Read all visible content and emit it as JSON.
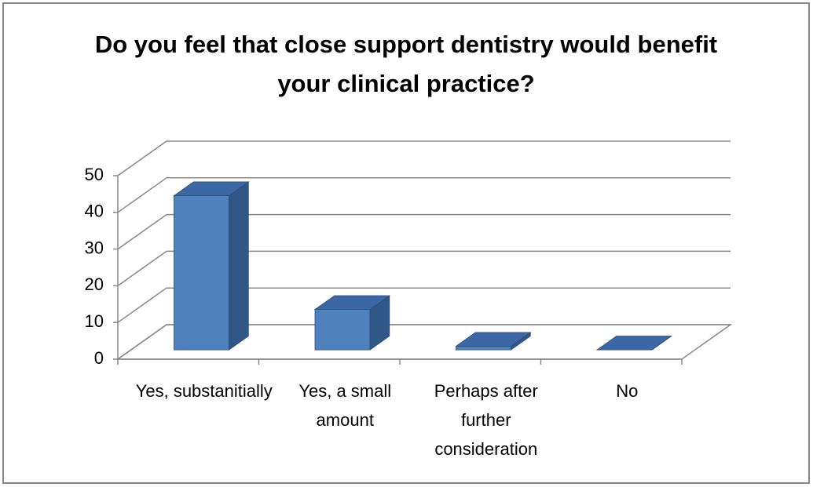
{
  "chart_data": {
    "type": "bar3d",
    "title": "Do you feel that close support dentistry would benefit your clinical practice?",
    "categories": [
      "Yes, substanitially",
      "Yes, a small amount",
      "Perhaps after further consideration",
      "No"
    ],
    "values": [
      42,
      11,
      1,
      0
    ],
    "color": "#4f81bd",
    "ylim": [
      0,
      50
    ],
    "yticks": [
      0,
      10,
      20,
      30,
      40,
      50
    ],
    "grid": true
  }
}
